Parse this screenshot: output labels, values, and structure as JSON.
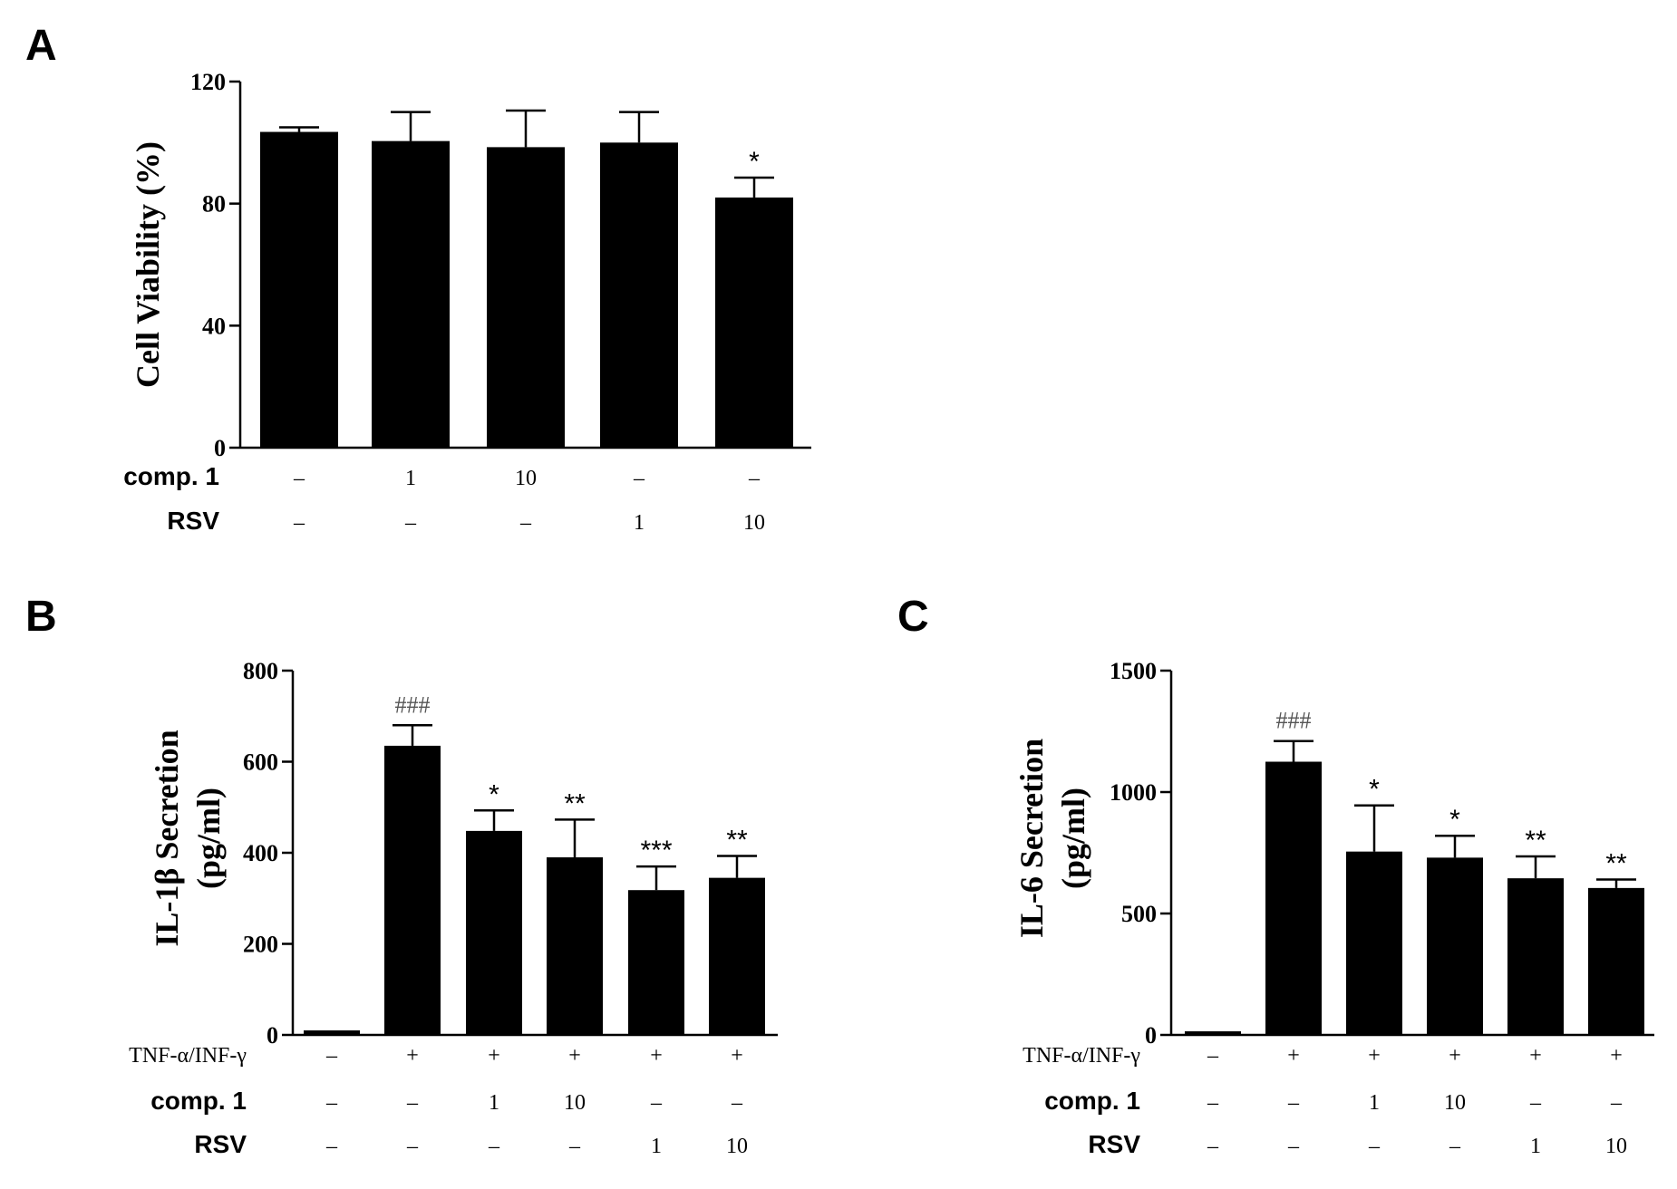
{
  "chart_data": [
    {
      "type": "bar",
      "panel": "A",
      "ylabel": "Cell Viability (%)",
      "ylim": [
        0,
        120
      ],
      "yticks": [
        "0",
        "40",
        "80",
        "120"
      ],
      "values": [
        103.5,
        100.5,
        98.5,
        100,
        82
      ],
      "errors": [
        1.5,
        9.5,
        12,
        10,
        6.5
      ],
      "annotations": [
        "",
        "",
        "",
        "",
        "*"
      ],
      "rows": [
        {
          "label": "comp. 1",
          "style": "sans",
          "cells": [
            "–",
            "1",
            "10",
            "–",
            "–"
          ]
        },
        {
          "label": "RSV",
          "style": "sans",
          "cells": [
            "–",
            "–",
            "–",
            "1",
            "10"
          ]
        }
      ]
    },
    {
      "type": "bar",
      "panel": "B",
      "ylabel_line1": "IL-1β Secretion",
      "ylabel_line2": "(pg/ml)",
      "ylim": [
        0,
        800
      ],
      "yticks": [
        "0",
        "200",
        "400",
        "600",
        "800"
      ],
      "values": [
        10,
        635,
        448,
        390,
        318,
        345
      ],
      "errors": [
        0,
        45,
        45,
        83,
        52,
        48
      ],
      "annotations": [
        "",
        "###",
        "*",
        "**",
        "***",
        "**"
      ],
      "rows": [
        {
          "label": "TNF-α/INF-γ",
          "style": "serif",
          "cells": [
            "–",
            "+",
            "+",
            "+",
            "+",
            "+"
          ]
        },
        {
          "label": "comp. 1",
          "style": "sans",
          "cells": [
            "–",
            "–",
            "1",
            "10",
            "–",
            "–"
          ]
        },
        {
          "label": "RSV",
          "style": "sans",
          "cells": [
            "–",
            "–",
            "–",
            "–",
            "1",
            "10"
          ]
        }
      ]
    },
    {
      "type": "bar",
      "panel": "C",
      "ylabel_line1": "IL-6 Secretion",
      "ylabel_line2": "(pg/ml)",
      "ylim": [
        0,
        1500
      ],
      "yticks": [
        "0",
        "500",
        "1000",
        "1500"
      ],
      "values": [
        15,
        1125,
        755,
        730,
        645,
        605
      ],
      "errors": [
        0,
        85,
        190,
        90,
        90,
        35
      ],
      "annotations": [
        "",
        "###",
        "*",
        "*",
        "**",
        "**"
      ],
      "rows": [
        {
          "label": "TNF-α/INF-γ",
          "style": "serif",
          "cells": [
            "–",
            "+",
            "+",
            "+",
            "+",
            "+"
          ]
        },
        {
          "label": "comp. 1",
          "style": "sans",
          "cells": [
            "–",
            "–",
            "1",
            "10",
            "–",
            "–"
          ]
        },
        {
          "label": "RSV",
          "style": "sans",
          "cells": [
            "–",
            "–",
            "–",
            "–",
            "1",
            "10"
          ]
        }
      ]
    }
  ],
  "colors": {
    "bar": "#000000",
    "axis": "#000000",
    "hash": "#555555"
  }
}
